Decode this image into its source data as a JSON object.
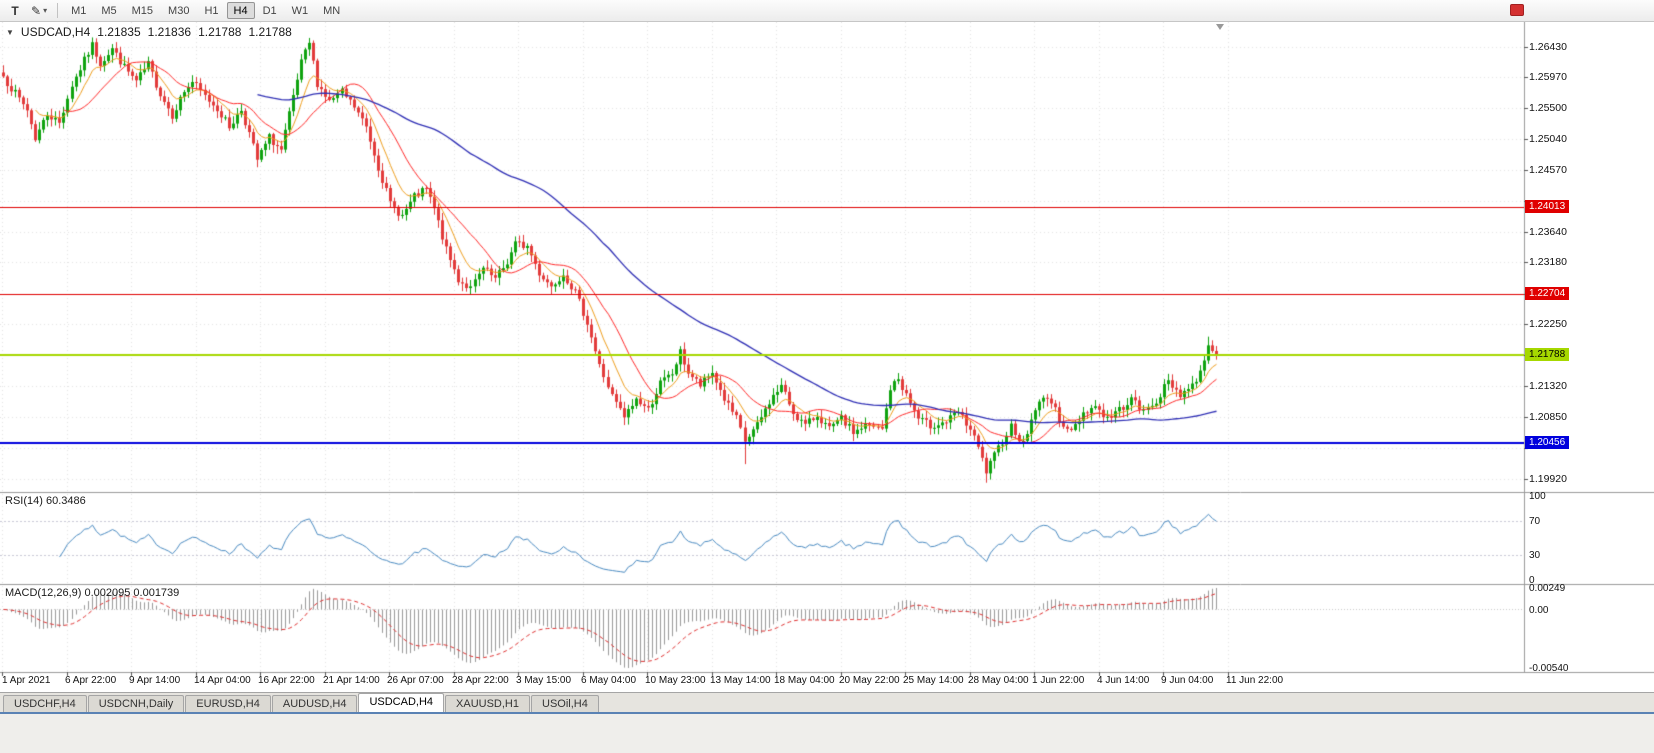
{
  "toolbar": {
    "text_tool_glyph": "T",
    "draw_tool_glyph": "✎",
    "caret_glyph": "▾",
    "timeframes": [
      "M1",
      "M5",
      "M15",
      "M30",
      "H1",
      "H4",
      "D1",
      "W1",
      "MN"
    ],
    "active_timeframe": "H4"
  },
  "header": {
    "dropdown_glyph": "▼",
    "symbol": "USDCAD,H4",
    "open": "1.21835",
    "high": "1.21836",
    "low": "1.21788",
    "close": "1.21788"
  },
  "indicators": {
    "rsi_label": "RSI(14) 60.3486",
    "macd_label": "MACD(12,26,9) 0.002095 0.001739"
  },
  "price_axis": {
    "ticks": [
      "1.26430",
      "1.25970",
      "1.25500",
      "1.25040",
      "1.24570",
      "1.24110",
      "1.23640",
      "1.23180",
      "1.22710",
      "1.22250",
      "1.21780",
      "1.21320",
      "1.20850",
      "1.20390",
      "1.19920"
    ],
    "tags": [
      {
        "label": "1.24013",
        "price": 1.24013,
        "bg": "#e00000",
        "fg": "#ffffff"
      },
      {
        "label": "1.22704",
        "price": 1.22704,
        "bg": "#e00000",
        "fg": "#ffffff"
      },
      {
        "label": "1.21788",
        "price": 1.21788,
        "bg": "#a6d800",
        "fg": "#000000"
      },
      {
        "label": "1.20456",
        "price": 1.20456,
        "bg": "#0000dd",
        "fg": "#ffffff"
      }
    ]
  },
  "time_axis": {
    "labels": [
      "1 Apr 2021",
      "6 Apr 22:00",
      "9 Apr 14:00",
      "14 Apr 04:00",
      "16 Apr 22:00",
      "21 Apr 14:00",
      "26 Apr 07:00",
      "28 Apr 22:00",
      "3 May 15:00",
      "6 May 04:00",
      "10 May 23:00",
      "13 May 14:00",
      "18 May 04:00",
      "20 May 22:00",
      "25 May 14:00",
      "28 May 04:00",
      "1 Jun 22:00",
      "4 Jun 14:00",
      "9 Jun 04:00",
      "11 Jun 22:00"
    ]
  },
  "tabs": [
    "USDCHF,H4",
    "USDCNH,Daily",
    "EURUSD,H4",
    "AUDUSD,H4",
    "USDCAD,H4",
    "XAUUSD,H1",
    "USOil,H4"
  ],
  "active_tab": "USDCAD,H4",
  "chart_data": {
    "type": "candlestick",
    "symbol": "USDCAD",
    "timeframe": "H4",
    "title": "USDCAD,H4",
    "bars": 302,
    "seed": 7,
    "y_range": [
      1.1972,
      1.268
    ],
    "up_color": "#0fa30f",
    "down_color": "#e23b3b",
    "close_anchors": [
      [
        0,
        1.2598
      ],
      [
        3,
        1.2572
      ],
      [
        6,
        1.2548
      ],
      [
        8,
        1.2505
      ],
      [
        11,
        1.2542
      ],
      [
        14,
        1.2528
      ],
      [
        17,
        1.2585
      ],
      [
        20,
        1.2622
      ],
      [
        22,
        1.2645
      ],
      [
        24,
        1.2618
      ],
      [
        27,
        1.264
      ],
      [
        30,
        1.2612
      ],
      [
        33,
        1.259
      ],
      [
        36,
        1.2616
      ],
      [
        39,
        1.2572
      ],
      [
        42,
        1.254
      ],
      [
        45,
        1.2576
      ],
      [
        47,
        1.259
      ],
      [
        50,
        1.2568
      ],
      [
        53,
        1.255
      ],
      [
        56,
        1.2522
      ],
      [
        59,
        1.2548
      ],
      [
        61,
        1.2512
      ],
      [
        63,
        1.2472
      ],
      [
        66,
        1.2506
      ],
      [
        69,
        1.2486
      ],
      [
        71,
        1.254
      ],
      [
        74,
        1.2618
      ],
      [
        76,
        1.2648
      ],
      [
        78,
        1.2588
      ],
      [
        81,
        1.256
      ],
      [
        84,
        1.2574
      ],
      [
        87,
        1.2552
      ],
      [
        90,
        1.2522
      ],
      [
        93,
        1.2462
      ],
      [
        96,
        1.2406
      ],
      [
        99,
        1.2388
      ],
      [
        102,
        1.2416
      ],
      [
        105,
        1.2428
      ],
      [
        107,
        1.2398
      ],
      [
        110,
        1.2336
      ],
      [
        113,
        1.2292
      ],
      [
        116,
        1.2278
      ],
      [
        119,
        1.2308
      ],
      [
        122,
        1.2292
      ],
      [
        125,
        1.2318
      ],
      [
        127,
        1.2346
      ],
      [
        130,
        1.2342
      ],
      [
        133,
        1.2302
      ],
      [
        136,
        1.2282
      ],
      [
        139,
        1.2302
      ],
      [
        142,
        1.2272
      ],
      [
        145,
        1.2228
      ],
      [
        148,
        1.2162
      ],
      [
        151,
        1.2116
      ],
      [
        154,
        1.2084
      ],
      [
        157,
        1.2112
      ],
      [
        160,
        1.2096
      ],
      [
        163,
        1.2136
      ],
      [
        166,
        1.215
      ],
      [
        168,
        1.2182
      ],
      [
        170,
        1.2152
      ],
      [
        173,
        1.2132
      ],
      [
        176,
        1.2152
      ],
      [
        179,
        1.2112
      ],
      [
        182,
        1.2082
      ],
      [
        184,
        1.2048
      ],
      [
        187,
        1.2072
      ],
      [
        190,
        1.2108
      ],
      [
        193,
        1.2132
      ],
      [
        196,
        1.2092
      ],
      [
        199,
        1.2072
      ],
      [
        202,
        1.2088
      ],
      [
        205,
        1.2066
      ],
      [
        208,
        1.2082
      ],
      [
        211,
        1.2062
      ],
      [
        214,
        1.2072
      ],
      [
        218,
        1.2066
      ],
      [
        220,
        1.2128
      ],
      [
        222,
        1.2142
      ],
      [
        224,
        1.2118
      ],
      [
        227,
        1.2082
      ],
      [
        230,
        1.2072
      ],
      [
        234,
        1.2078
      ],
      [
        237,
        1.2092
      ],
      [
        240,
        1.2066
      ],
      [
        242,
        1.2038
      ],
      [
        244,
        1.2002
      ],
      [
        247,
        1.2038
      ],
      [
        250,
        1.2072
      ],
      [
        253,
        1.2044
      ],
      [
        256,
        1.2098
      ],
      [
        259,
        1.2118
      ],
      [
        262,
        1.2082
      ],
      [
        265,
        1.2062
      ],
      [
        268,
        1.2092
      ],
      [
        271,
        1.2102
      ],
      [
        274,
        1.2082
      ],
      [
        277,
        1.2096
      ],
      [
        280,
        1.2112
      ],
      [
        283,
        1.2092
      ],
      [
        286,
        1.211
      ],
      [
        289,
        1.2138
      ],
      [
        292,
        1.212
      ],
      [
        295,
        1.2132
      ],
      [
        297,
        1.2152
      ],
      [
        299,
        1.2196
      ],
      [
        300,
        1.2188
      ],
      [
        301,
        1.21788
      ]
    ],
    "special_wicks": {
      "76": {
        "h": 1.2656
      },
      "184": {
        "l": 1.2014
      },
      "244": {
        "l": 1.1986
      },
      "299": {
        "h": 1.2206
      }
    },
    "hlines": [
      {
        "price": 1.24013,
        "color": "#e00000",
        "width": 1
      },
      {
        "price": 1.22704,
        "color": "#e00000",
        "width": 1
      },
      {
        "price": 1.21788,
        "color": "#a6d800",
        "width": 2
      },
      {
        "price": 1.20456,
        "color": "#0000dd",
        "width": 2
      }
    ],
    "moving_averages": [
      {
        "period": 8,
        "method": "ema",
        "color": "#ef9f1f"
      },
      {
        "period": 16,
        "method": "sma",
        "color": "#ff2a2a"
      },
      {
        "period": 64,
        "method": "sma",
        "color": "#2f2fb5"
      }
    ],
    "rsi": {
      "period": 14,
      "current": 60.3486,
      "color": "#4a8bc2",
      "levels": [
        70,
        30
      ],
      "axis": [
        "100",
        "70",
        "30",
        "0"
      ]
    },
    "macd": {
      "fast": 12,
      "slow": 26,
      "signal": 9,
      "main_value": 0.002095,
      "signal_value": 0.001739,
      "hist_color": "#9a9a9a",
      "signal_color": "#e03030",
      "axis_top": "0.00249",
      "axis_zero": "0.00",
      "axis_bottom": "-0.00540"
    }
  }
}
